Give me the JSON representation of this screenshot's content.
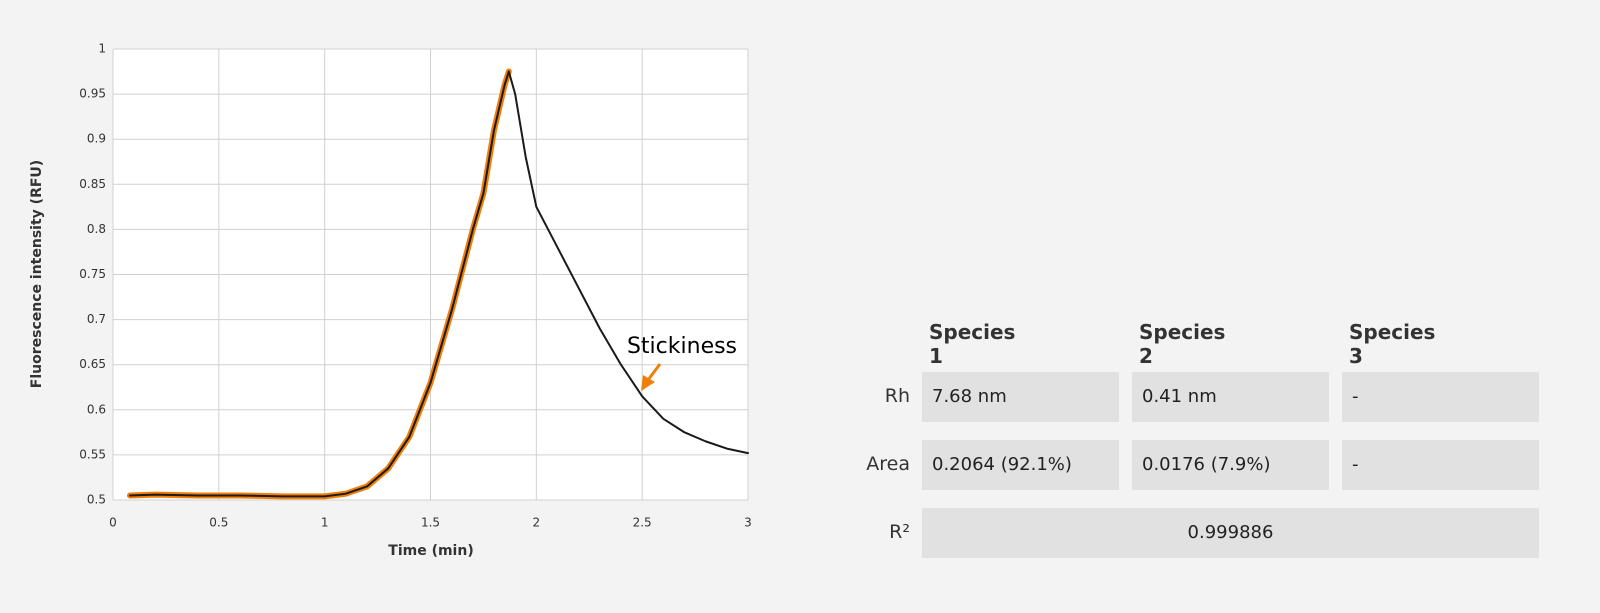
{
  "chart_data": {
    "type": "line",
    "x_label": "Time (min)",
    "y_label": "Fluorescence intensity (RFU)",
    "annotation": "Stickiness",
    "x": [
      0.08,
      0.2,
      0.4,
      0.6,
      0.8,
      1.0,
      1.1,
      1.2,
      1.3,
      1.4,
      1.5,
      1.6,
      1.7,
      1.75,
      1.8,
      1.85,
      1.87,
      1.9,
      1.95,
      2.0,
      2.1,
      2.2,
      2.3,
      2.4,
      2.5,
      2.6,
      2.7,
      2.8,
      2.9,
      3.0
    ],
    "series": [
      {
        "color": "#f07f0a",
        "width": 6,
        "values": [
          0.505,
          0.506,
          0.505,
          0.505,
          0.504,
          0.504,
          0.507,
          0.515,
          0.535,
          0.57,
          0.63,
          0.71,
          0.8,
          0.84,
          0.91,
          0.96,
          0.975,
          null,
          null,
          null,
          null,
          null,
          null,
          null,
          null,
          null,
          null,
          null,
          null,
          null
        ]
      },
      {
        "color": "#1a1a1a",
        "width": 2,
        "values": [
          0.505,
          0.506,
          0.505,
          0.505,
          0.504,
          0.504,
          0.507,
          0.515,
          0.535,
          0.57,
          0.63,
          0.71,
          0.8,
          0.84,
          0.91,
          0.96,
          0.975,
          0.95,
          0.88,
          0.825,
          0.78,
          0.735,
          0.69,
          0.65,
          0.615,
          0.59,
          0.575,
          0.565,
          0.557,
          0.552
        ]
      }
    ],
    "xlim": [
      0,
      3
    ],
    "xticks": [
      0,
      0.5,
      1,
      1.5,
      2,
      2.5,
      3
    ],
    "ylim": [
      0.5,
      1
    ],
    "yticks": [
      0.5,
      0.55,
      0.6,
      0.65,
      0.7,
      0.75,
      0.8,
      0.85,
      0.9,
      0.95,
      1
    ],
    "grid": true
  },
  "table": {
    "columns": [
      "Species 1",
      "Species 2",
      "Species 3"
    ],
    "rows": [
      {
        "label": "Rh",
        "cells": [
          "7.68 nm",
          "0.41 nm",
          "-"
        ]
      },
      {
        "label": "Area",
        "cells": [
          "0.2064 (92.1%)",
          "0.0176 (7.9%)",
          "-"
        ]
      },
      {
        "label": "R²",
        "cells": [
          "0.999886"
        ]
      }
    ]
  }
}
